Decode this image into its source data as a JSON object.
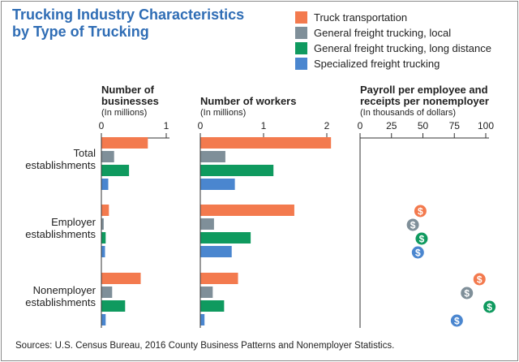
{
  "title": {
    "line1": "Trucking Industry Characteristics",
    "line2": "by Type of Trucking"
  },
  "legend": [
    {
      "label": "Truck transportation",
      "color": "#f37a4e"
    },
    {
      "label": "General freight trucking, local",
      "color": "#7f8f99"
    },
    {
      "label": "General freight trucking, long distance",
      "color": "#0f9a5f"
    },
    {
      "label": "Specialized freight trucking",
      "color": "#4a86cf"
    }
  ],
  "source": "Sources: U.S. Census Bureau, 2016 County Business Patterns and Nonemployer Statistics.",
  "chart_data": [
    {
      "type": "bar",
      "orientation": "horizontal",
      "title": "Number of businesses",
      "subtitle": "(In millions)",
      "xlim": [
        0,
        1
      ],
      "ticks": [
        0,
        1
      ],
      "categories": [
        "Total establishments",
        "Employer establishments",
        "Nonemployer establishments"
      ],
      "series": [
        {
          "name": "Truck transportation",
          "values": [
            0.71,
            0.11,
            0.6
          ]
        },
        {
          "name": "General freight trucking, local",
          "values": [
            0.19,
            0.03,
            0.16
          ]
        },
        {
          "name": "General freight trucking, long distance",
          "values": [
            0.42,
            0.06,
            0.36
          ]
        },
        {
          "name": "Specialized freight trucking",
          "values": [
            0.1,
            0.05,
            0.06
          ]
        }
      ]
    },
    {
      "type": "bar",
      "orientation": "horizontal",
      "title": "Number of workers",
      "subtitle": "(In millions)",
      "xlim": [
        0,
        2
      ],
      "ticks": [
        0,
        1,
        2
      ],
      "categories": [
        "Total establishments",
        "Employer establishments",
        "Nonemployer establishments"
      ],
      "series": [
        {
          "name": "Truck transportation",
          "values": [
            2.06,
            1.48,
            0.59
          ]
        },
        {
          "name": "General freight trucking, local",
          "values": [
            0.39,
            0.21,
            0.19
          ]
        },
        {
          "name": "General freight trucking, long distance",
          "values": [
            1.15,
            0.79,
            0.37
          ]
        },
        {
          "name": "Specialized freight trucking",
          "values": [
            0.54,
            0.49,
            0.06
          ]
        }
      ]
    },
    {
      "type": "scatter",
      "title": "Payroll per employee and receipts per nonemployer",
      "subtitle": "(In thousands of dollars)",
      "xlim": [
        0,
        100
      ],
      "ticks": [
        0,
        25,
        50,
        75,
        100
      ],
      "categories": [
        "Employer establishments",
        "Nonemployer establishments"
      ],
      "marker": "$",
      "series": [
        {
          "name": "Truck transportation",
          "values": [
            48,
            95
          ]
        },
        {
          "name": "General freight trucking, local",
          "values": [
            42,
            85
          ]
        },
        {
          "name": "General freight trucking, long distance",
          "values": [
            49,
            103
          ]
        },
        {
          "name": "Specialized freight trucking",
          "values": [
            46,
            77
          ]
        }
      ]
    }
  ]
}
